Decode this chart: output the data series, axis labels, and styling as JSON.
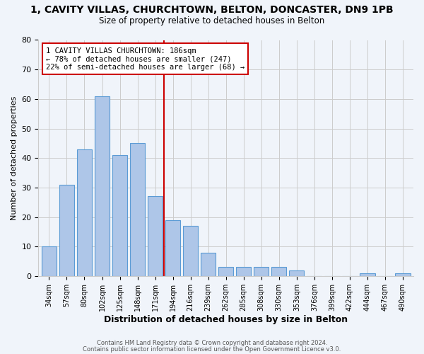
{
  "title_line1": "1, CAVITY VILLAS, CHURCHTOWN, BELTON, DONCASTER, DN9 1PB",
  "title_line2": "Size of property relative to detached houses in Belton",
  "xlabel": "Distribution of detached houses by size in Belton",
  "ylabel": "Number of detached properties",
  "bar_labels": [
    "34sqm",
    "57sqm",
    "80sqm",
    "102sqm",
    "125sqm",
    "148sqm",
    "171sqm",
    "194sqm",
    "216sqm",
    "239sqm",
    "262sqm",
    "285sqm",
    "308sqm",
    "330sqm",
    "353sqm",
    "376sqm",
    "399sqm",
    "422sqm",
    "444sqm",
    "467sqm",
    "490sqm"
  ],
  "bar_values": [
    10,
    31,
    43,
    61,
    41,
    45,
    27,
    19,
    17,
    8,
    3,
    3,
    3,
    3,
    2,
    0,
    0,
    0,
    1,
    0,
    1
  ],
  "bar_color": "#aec6e8",
  "bar_edge_color": "#5b9bd5",
  "vline_color": "#cc0000",
  "annotation_line1": "1 CAVITY VILLAS CHURCHTOWN: 186sqm",
  "annotation_line2": "← 78% of detached houses are smaller (247)",
  "annotation_line3": "22% of semi-detached houses are larger (68) →",
  "annotation_box_edgecolor": "#cc0000",
  "annotation_box_facecolor": "#ffffff",
  "ylim": [
    0,
    80
  ],
  "yticks": [
    0,
    10,
    20,
    30,
    40,
    50,
    60,
    70,
    80
  ],
  "grid_color": "#cccccc",
  "footer_line1": "Contains HM Land Registry data © Crown copyright and database right 2024.",
  "footer_line2": "Contains public sector information licensed under the Open Government Licence v3.0.",
  "bg_color": "#f0f4fa"
}
